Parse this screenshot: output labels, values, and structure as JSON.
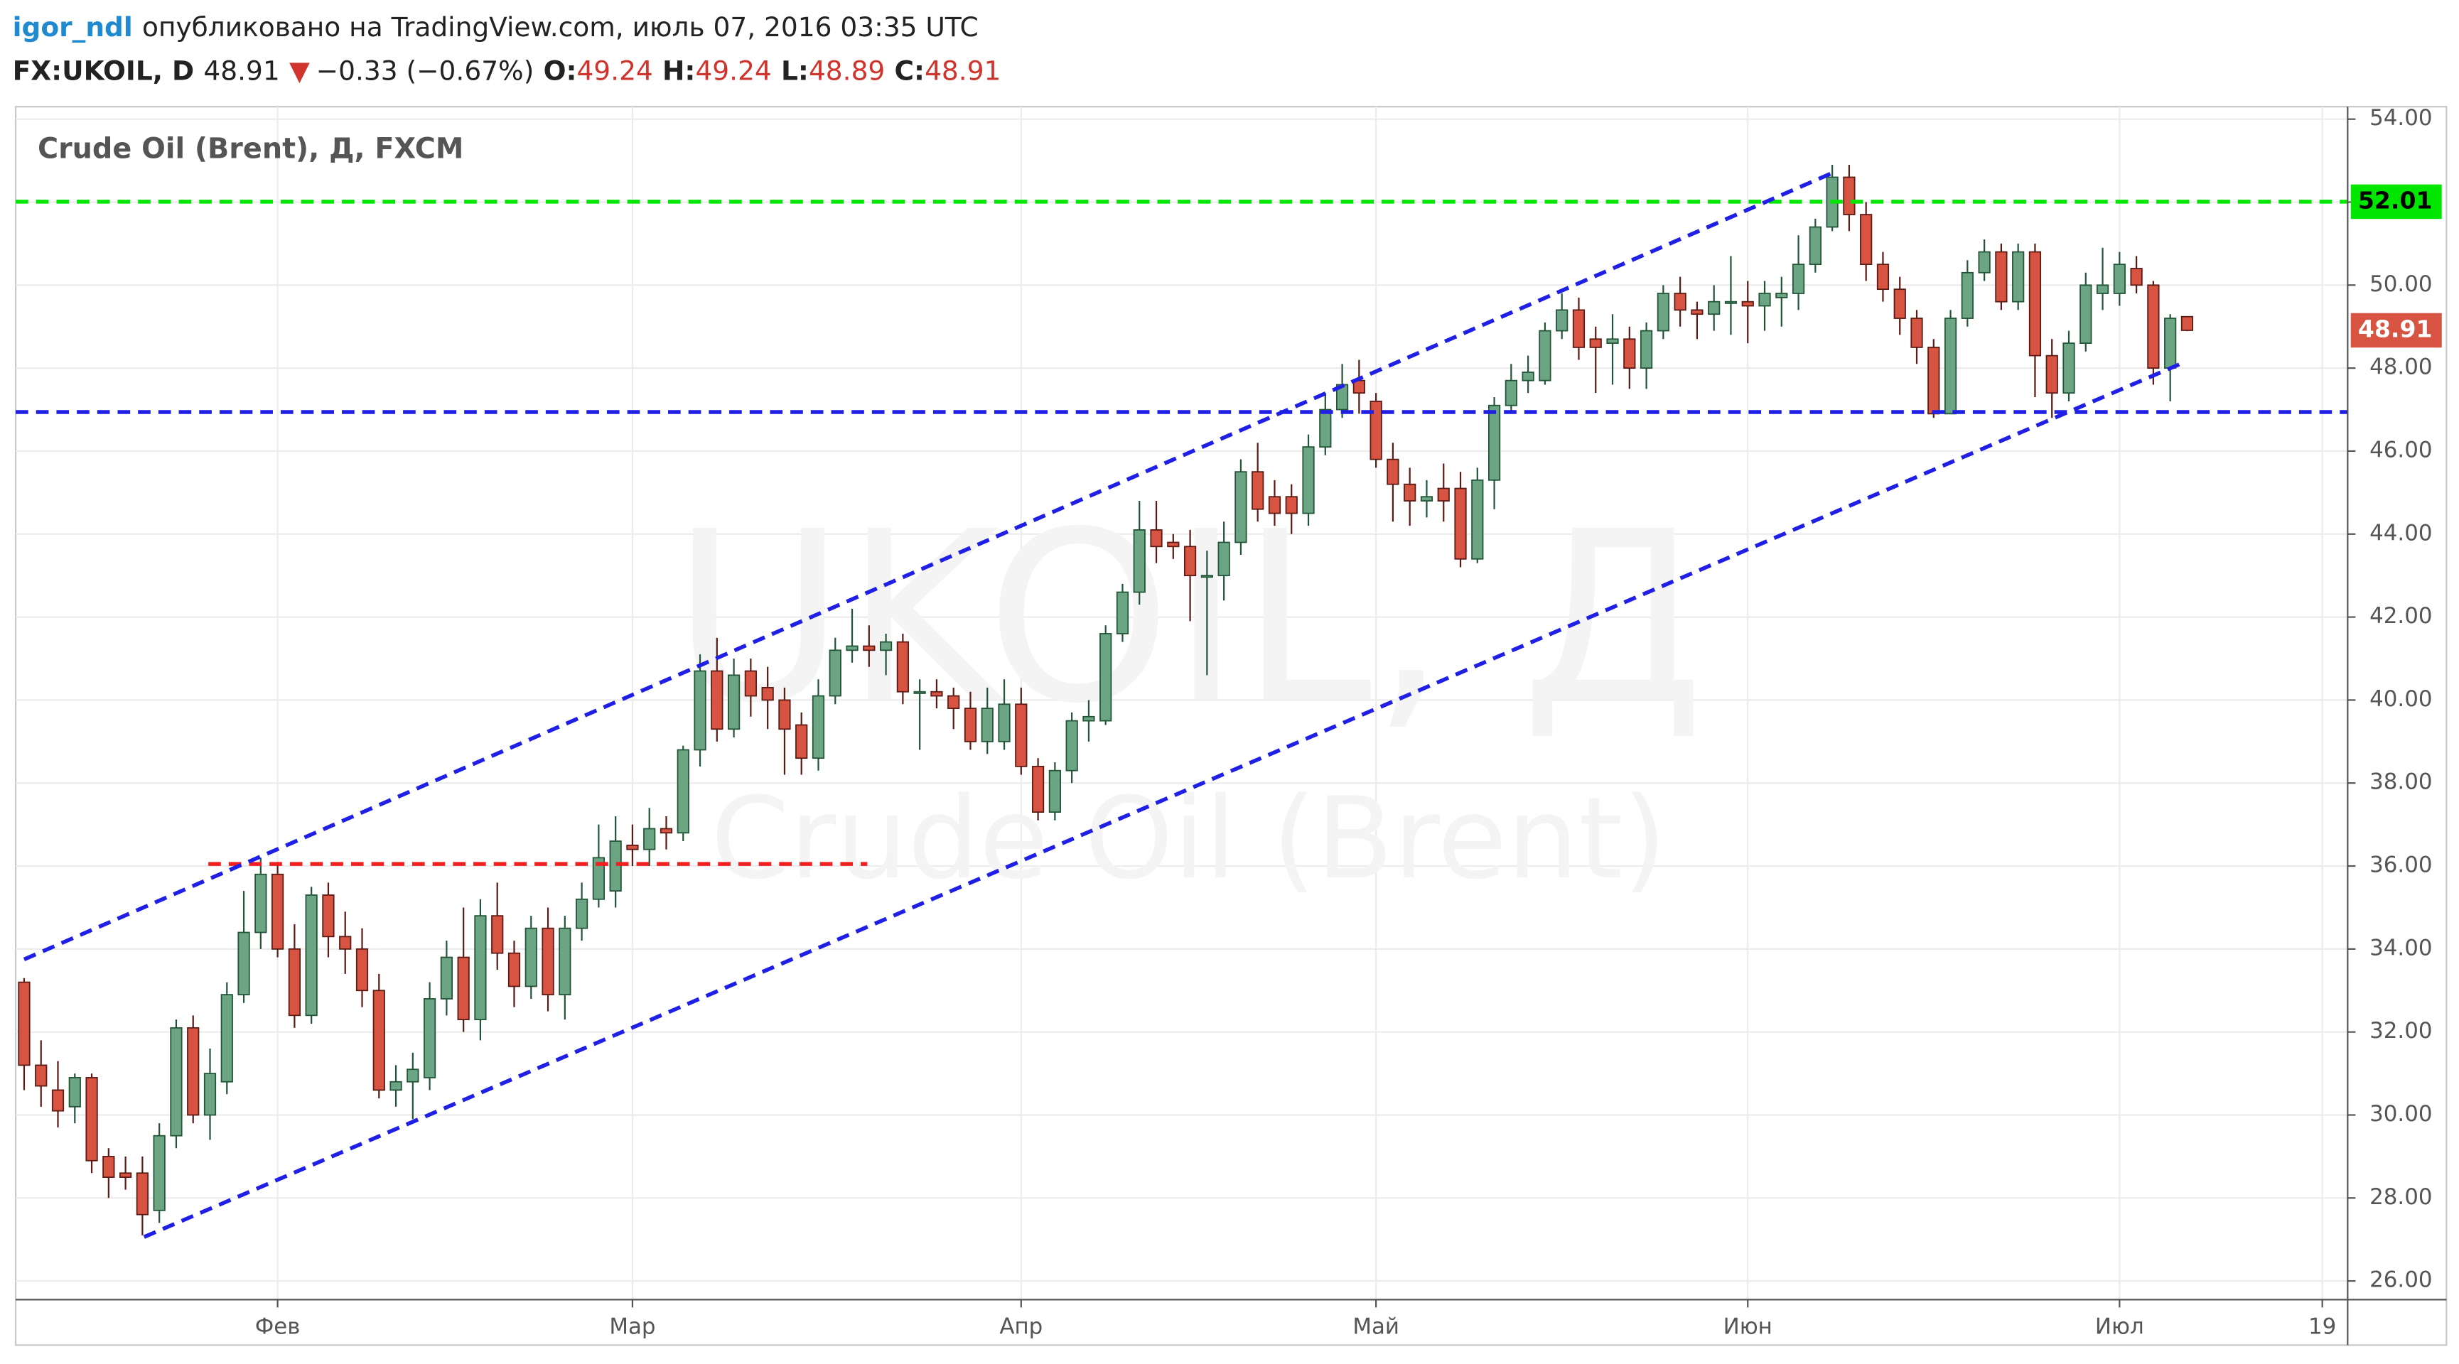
{
  "header": {
    "author": "igor_ndl",
    "published": "опубликовано на TradingView.com, июль 07, 2016 03:35 UTC",
    "symbol": "FX:UKOIL, D",
    "direction": "▼",
    "change": "−0.33 (−0.67%)",
    "o": "O:",
    "h": "H:",
    "l": "L:",
    "c": "C:"
  },
  "chart_data": {
    "type": "candlestick",
    "legend": "Crude Oil (Brent), Д, FXCM",
    "watermark": [
      "UKOIL, Д",
      "Crude Oil (Brent)"
    ],
    "up_color": "#6ba583",
    "down_color": "#d75442",
    "up_border": "#225437",
    "down_border": "#5b1a13",
    "categories": [
      null,
      null,
      null,
      null,
      null,
      null,
      null,
      null,
      null,
      null,
      null,
      null,
      null,
      null,
      null,
      "Фев",
      null,
      null,
      null,
      null,
      null,
      null,
      null,
      null,
      null,
      null,
      null,
      null,
      null,
      null,
      null,
      null,
      null,
      null,
      null,
      null,
      "Мар",
      null,
      null,
      null,
      null,
      null,
      null,
      null,
      null,
      null,
      null,
      null,
      null,
      null,
      null,
      null,
      null,
      null,
      null,
      null,
      null,
      null,
      null,
      "Апр",
      null,
      null,
      null,
      null,
      null,
      null,
      null,
      null,
      null,
      null,
      null,
      null,
      null,
      null,
      null,
      null,
      null,
      null,
      null,
      null,
      "Май",
      null,
      null,
      null,
      null,
      null,
      null,
      null,
      null,
      null,
      null,
      null,
      null,
      null,
      null,
      null,
      null,
      null,
      null,
      null,
      null,
      null,
      "Июн",
      null,
      null,
      null,
      null,
      null,
      null,
      null,
      null,
      null,
      null,
      null,
      null,
      null,
      null,
      null,
      null,
      null,
      null,
      null,
      null,
      null,
      "Июл",
      null,
      null,
      null,
      null,
      null,
      null,
      null,
      null,
      null,
      null,
      null,
      "19",
      null
    ],
    "open": [
      33.2,
      31.2,
      30.6,
      30.2,
      30.9,
      29.0,
      28.6,
      28.6,
      27.7,
      29.5,
      32.1,
      30.0,
      30.8,
      32.9,
      34.4,
      35.8,
      34.0,
      32.4,
      35.3,
      34.3,
      34.0,
      33.0,
      30.6,
      30.8,
      30.9,
      32.8,
      33.8,
      32.3,
      34.8,
      33.9,
      33.1,
      34.5,
      32.9,
      34.5,
      35.2,
      35.4,
      36.5,
      36.4,
      36.9,
      36.8,
      38.8,
      40.7,
      39.3,
      40.7,
      40.3,
      40.0,
      39.4,
      38.6,
      40.1,
      41.2,
      41.3,
      41.2,
      41.4,
      40.2,
      40.2,
      40.1,
      39.8,
      39.0,
      39.0,
      39.9,
      38.4,
      37.3,
      38.3,
      39.5,
      39.5,
      41.6,
      42.6,
      44.1,
      43.8,
      43.7,
      43.0,
      43.0,
      43.8,
      45.5,
      44.9,
      44.9,
      44.5,
      46.1,
      47.0,
      47.7,
      47.2,
      45.8,
      45.2,
      44.8,
      45.1,
      45.1,
      43.4,
      45.3,
      47.1,
      47.7,
      47.7,
      48.9,
      49.4,
      48.7,
      48.6,
      48.7,
      48.0,
      48.9,
      49.8,
      49.4,
      49.3,
      49.6,
      49.6,
      49.5,
      49.7,
      49.8,
      50.5,
      51.4,
      52.6,
      51.7,
      50.5,
      49.9,
      49.2,
      48.5,
      46.9,
      49.2,
      50.3,
      50.8,
      49.6,
      50.8,
      48.3,
      47.4,
      48.6,
      49.8,
      49.8,
      50.4,
      50.0,
      48.0,
      49.24,
      null,
      null,
      null,
      null,
      null,
      null,
      null,
      null,
      null
    ],
    "high": [
      33.3,
      31.8,
      31.3,
      31.0,
      31.0,
      29.2,
      29.0,
      29.0,
      29.8,
      32.3,
      32.4,
      31.6,
      33.2,
      35.4,
      36.2,
      36.1,
      34.6,
      35.5,
      35.6,
      34.9,
      34.5,
      33.4,
      31.2,
      31.5,
      33.2,
      34.2,
      35.0,
      35.2,
      35.6,
      34.2,
      34.8,
      35.0,
      34.8,
      35.6,
      37.0,
      37.2,
      37.0,
      37.4,
      37.2,
      38.9,
      41.1,
      41.5,
      41.0,
      41.0,
      40.8,
      40.3,
      39.7,
      40.5,
      41.5,
      42.2,
      41.8,
      41.6,
      41.6,
      40.5,
      40.5,
      40.3,
      40.2,
      40.3,
      40.5,
      40.3,
      38.6,
      38.5,
      39.7,
      40.0,
      41.8,
      42.8,
      44.8,
      44.8,
      44.0,
      44.1,
      43.6,
      44.3,
      45.8,
      46.2,
      45.3,
      45.2,
      46.4,
      47.4,
      48.1,
      48.2,
      47.4,
      46.2,
      45.6,
      45.3,
      45.7,
      45.5,
      45.6,
      47.3,
      48.1,
      48.3,
      49.1,
      49.8,
      49.7,
      49.0,
      49.3,
      49.0,
      49.1,
      50.0,
      50.2,
      49.6,
      50.0,
      50.7,
      50.1,
      50.1,
      50.2,
      51.2,
      51.6,
      52.9,
      52.9,
      52.0,
      50.8,
      50.2,
      49.4,
      48.7,
      49.4,
      50.6,
      51.1,
      51.0,
      51.0,
      51.0,
      48.7,
      48.9,
      50.3,
      50.9,
      50.8,
      50.7,
      50.1,
      49.3,
      49.24,
      null,
      null,
      null,
      null,
      null,
      null,
      null,
      null,
      null
    ],
    "low": [
      30.6,
      30.2,
      29.7,
      29.8,
      28.6,
      28.0,
      28.2,
      27.1,
      27.4,
      29.2,
      29.8,
      29.4,
      30.5,
      32.7,
      34.0,
      33.8,
      32.1,
      32.2,
      33.8,
      33.4,
      32.6,
      30.4,
      30.2,
      29.9,
      30.6,
      32.4,
      32.0,
      31.8,
      33.5,
      32.6,
      32.8,
      32.5,
      32.3,
      34.2,
      35.0,
      35.0,
      36.0,
      36.0,
      36.4,
      36.6,
      38.4,
      39.0,
      39.1,
      39.6,
      39.3,
      38.2,
      38.2,
      38.3,
      39.9,
      40.9,
      40.8,
      40.6,
      39.9,
      38.8,
      39.8,
      39.3,
      38.8,
      38.7,
      38.8,
      38.2,
      37.1,
      37.1,
      38.0,
      39.0,
      39.4,
      41.4,
      42.3,
      43.3,
      43.4,
      41.9,
      40.6,
      42.4,
      43.5,
      44.3,
      44.2,
      44.0,
      44.2,
      45.9,
      46.8,
      46.9,
      45.6,
      44.3,
      44.2,
      44.4,
      44.3,
      43.2,
      43.3,
      44.6,
      46.9,
      47.4,
      47.6,
      48.7,
      48.2,
      47.4,
      47.6,
      47.5,
      47.5,
      48.7,
      49.0,
      48.7,
      48.9,
      48.8,
      48.6,
      48.9,
      49.0,
      49.4,
      50.3,
      51.3,
      51.3,
      50.1,
      49.6,
      48.8,
      48.1,
      46.8,
      46.9,
      49.0,
      50.1,
      49.4,
      49.4,
      47.3,
      46.8,
      47.2,
      48.4,
      49.4,
      49.5,
      49.8,
      47.6,
      47.2,
      48.89,
      null,
      null,
      null,
      null,
      null,
      null,
      null,
      null,
      null
    ],
    "close": [
      31.2,
      30.7,
      30.1,
      30.9,
      28.9,
      28.5,
      28.5,
      27.6,
      29.5,
      32.1,
      30.0,
      31.0,
      32.9,
      34.4,
      35.8,
      34.0,
      32.4,
      35.3,
      34.3,
      34.0,
      33.0,
      30.6,
      30.8,
      31.1,
      32.8,
      33.8,
      32.3,
      34.8,
      33.9,
      33.1,
      34.5,
      32.9,
      34.5,
      35.2,
      36.2,
      36.6,
      36.4,
      36.9,
      36.8,
      38.8,
      40.7,
      39.3,
      40.6,
      40.1,
      40.0,
      39.3,
      38.6,
      40.1,
      41.2,
      41.3,
      41.2,
      41.4,
      40.2,
      40.2,
      40.1,
      39.8,
      39.0,
      39.8,
      39.9,
      38.4,
      37.3,
      38.3,
      39.5,
      39.6,
      41.6,
      42.6,
      44.1,
      43.7,
      43.7,
      43.0,
      43.0,
      43.8,
      45.5,
      44.6,
      44.5,
      44.5,
      46.1,
      47.0,
      47.6,
      47.4,
      45.8,
      45.2,
      44.8,
      44.9,
      44.8,
      43.4,
      45.3,
      47.1,
      47.7,
      47.9,
      48.9,
      49.4,
      48.5,
      48.5,
      48.7,
      48.0,
      48.9,
      49.8,
      49.4,
      49.3,
      49.6,
      49.6,
      49.5,
      49.8,
      49.8,
      50.5,
      51.4,
      52.6,
      51.7,
      50.5,
      49.9,
      49.2,
      48.5,
      46.9,
      49.2,
      50.3,
      50.8,
      49.6,
      50.8,
      48.3,
      47.4,
      48.6,
      50.0,
      50.0,
      50.5,
      50.0,
      48.0,
      49.2,
      48.91,
      null,
      null,
      null,
      null,
      null,
      null,
      null,
      null,
      null
    ],
    "ylim": [
      25.55,
      54.3
    ],
    "yticks": [
      {
        "value": 26,
        "label": "26.00"
      },
      {
        "value": 28,
        "label": "28.00"
      },
      {
        "value": 30,
        "label": "30.00"
      },
      {
        "value": 32,
        "label": "32.00"
      },
      {
        "value": 34,
        "label": "34.00"
      },
      {
        "value": 36,
        "label": "36.00"
      },
      {
        "value": 38,
        "label": "38.00"
      },
      {
        "value": 40,
        "label": "40.00"
      },
      {
        "value": 42,
        "label": "42.00"
      },
      {
        "value": 44,
        "label": "44.00"
      },
      {
        "value": 46,
        "label": "46.00"
      },
      {
        "value": 48,
        "label": "48.00"
      },
      {
        "value": 50,
        "label": "50.00"
      },
      {
        "value": 52,
        "label": "52.00"
      },
      {
        "value": 54,
        "label": "54.00"
      }
    ],
    "grid": true,
    "levels": [
      {
        "value": 52.01,
        "color": "#00e600",
        "axis_label": true
      },
      {
        "value": 46.94,
        "color": "#1f1fe6"
      },
      {
        "value": 36.05,
        "color": "#f02020",
        "x": [
          10.9,
          49.9
        ]
      }
    ],
    "channel": [
      {
        "x": [
          0,
          107.1
        ],
        "y": [
          33.75,
          52.72
        ],
        "color": "#1f1fe6"
      },
      {
        "x": [
          7.1,
          127.6
        ],
        "y": [
          27.06,
          48.1
        ],
        "color": "#1f1fe6"
      }
    ]
  }
}
